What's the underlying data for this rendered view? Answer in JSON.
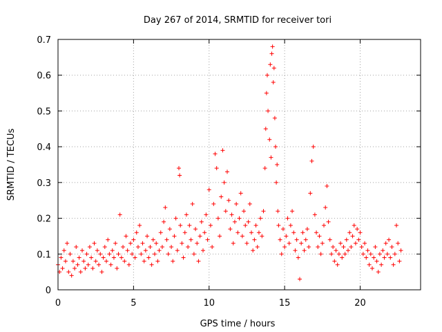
{
  "chart_data": {
    "type": "scatter",
    "title": "Day 267 of 2014, SRMTID for receiver tori",
    "xlabel": "GPS time / hours",
    "ylabel": "SRMTID / TECUs",
    "xlim": [
      0,
      24
    ],
    "ylim": [
      0,
      0.7
    ],
    "xticks": [
      0,
      5,
      10,
      15,
      20
    ],
    "yticks": [
      0,
      0.1,
      0.2,
      0.3,
      0.4,
      0.5,
      0.6,
      0.7
    ],
    "grid": true,
    "marker": "+",
    "color": "#ff0000",
    "x_range_observed": [
      0,
      22.7
    ],
    "series": [
      {
        "name": "SRMTID",
        "points": [
          [
            0.0,
            0.07
          ],
          [
            0.1,
            0.05
          ],
          [
            0.2,
            0.09
          ],
          [
            0.3,
            0.06
          ],
          [
            0.4,
            0.11
          ],
          [
            0.5,
            0.08
          ],
          [
            0.6,
            0.13
          ],
          [
            0.7,
            0.05
          ],
          [
            0.8,
            0.1
          ],
          [
            0.9,
            0.04
          ],
          [
            1.0,
            0.08
          ],
          [
            1.1,
            0.06
          ],
          [
            1.2,
            0.12
          ],
          [
            1.3,
            0.07
          ],
          [
            1.4,
            0.09
          ],
          [
            1.5,
            0.05
          ],
          [
            1.6,
            0.11
          ],
          [
            1.7,
            0.08
          ],
          [
            1.8,
            0.06
          ],
          [
            1.9,
            0.1
          ],
          [
            2.0,
            0.07
          ],
          [
            2.1,
            0.12
          ],
          [
            2.2,
            0.09
          ],
          [
            2.3,
            0.06
          ],
          [
            2.4,
            0.13
          ],
          [
            2.5,
            0.08
          ],
          [
            2.6,
            0.11
          ],
          [
            2.7,
            0.07
          ],
          [
            2.8,
            0.1
          ],
          [
            2.9,
            0.05
          ],
          [
            3.0,
            0.09
          ],
          [
            3.1,
            0.12
          ],
          [
            3.2,
            0.08
          ],
          [
            3.3,
            0.14
          ],
          [
            3.4,
            0.1
          ],
          [
            3.5,
            0.07
          ],
          [
            3.6,
            0.11
          ],
          [
            3.7,
            0.09
          ],
          [
            3.8,
            0.13
          ],
          [
            3.9,
            0.06
          ],
          [
            4.0,
            0.1
          ],
          [
            4.1,
            0.21
          ],
          [
            4.2,
            0.09
          ],
          [
            4.3,
            0.12
          ],
          [
            4.4,
            0.08
          ],
          [
            4.5,
            0.15
          ],
          [
            4.6,
            0.11
          ],
          [
            4.7,
            0.07
          ],
          [
            4.8,
            0.13
          ],
          [
            4.9,
            0.1
          ],
          [
            5.0,
            0.14
          ],
          [
            5.1,
            0.09
          ],
          [
            5.2,
            0.16
          ],
          [
            5.3,
            0.12
          ],
          [
            5.4,
            0.18
          ],
          [
            5.5,
            0.1
          ],
          [
            5.6,
            0.13
          ],
          [
            5.7,
            0.08
          ],
          [
            5.8,
            0.11
          ],
          [
            5.9,
            0.15
          ],
          [
            6.0,
            0.09
          ],
          [
            6.1,
            0.12
          ],
          [
            6.2,
            0.07
          ],
          [
            6.3,
            0.14
          ],
          [
            6.4,
            0.1
          ],
          [
            6.5,
            0.13
          ],
          [
            6.6,
            0.08
          ],
          [
            6.7,
            0.11
          ],
          [
            6.8,
            0.16
          ],
          [
            6.9,
            0.12
          ],
          [
            7.0,
            0.19
          ],
          [
            7.1,
            0.23
          ],
          [
            7.2,
            0.14
          ],
          [
            7.3,
            0.1
          ],
          [
            7.4,
            0.17
          ],
          [
            7.5,
            0.12
          ],
          [
            7.6,
            0.08
          ],
          [
            7.7,
            0.15
          ],
          [
            7.8,
            0.2
          ],
          [
            7.9,
            0.11
          ],
          [
            8.0,
            0.34
          ],
          [
            8.05,
            0.32
          ],
          [
            8.1,
            0.18
          ],
          [
            8.2,
            0.13
          ],
          [
            8.3,
            0.09
          ],
          [
            8.4,
            0.16
          ],
          [
            8.5,
            0.21
          ],
          [
            8.6,
            0.12
          ],
          [
            8.7,
            0.18
          ],
          [
            8.8,
            0.14
          ],
          [
            8.9,
            0.24
          ],
          [
            9.0,
            0.1
          ],
          [
            9.1,
            0.17
          ],
          [
            9.2,
            0.13
          ],
          [
            9.3,
            0.08
          ],
          [
            9.4,
            0.15
          ],
          [
            9.5,
            0.19
          ],
          [
            9.6,
            0.11
          ],
          [
            9.7,
            0.16
          ],
          [
            9.8,
            0.21
          ],
          [
            9.9,
            0.14
          ],
          [
            10.0,
            0.28
          ],
          [
            10.1,
            0.18
          ],
          [
            10.2,
            0.12
          ],
          [
            10.3,
            0.24
          ],
          [
            10.4,
            0.38
          ],
          [
            10.5,
            0.34
          ],
          [
            10.6,
            0.2
          ],
          [
            10.7,
            0.15
          ],
          [
            10.8,
            0.26
          ],
          [
            10.9,
            0.39
          ],
          [
            11.0,
            0.3
          ],
          [
            11.1,
            0.22
          ],
          [
            11.2,
            0.33
          ],
          [
            11.3,
            0.25
          ],
          [
            11.4,
            0.17
          ],
          [
            11.5,
            0.21
          ],
          [
            11.6,
            0.13
          ],
          [
            11.7,
            0.19
          ],
          [
            11.8,
            0.24
          ],
          [
            11.9,
            0.16
          ],
          [
            12.0,
            0.2
          ],
          [
            12.1,
            0.27
          ],
          [
            12.2,
            0.15
          ],
          [
            12.3,
            0.22
          ],
          [
            12.4,
            0.18
          ],
          [
            12.5,
            0.13
          ],
          [
            12.6,
            0.19
          ],
          [
            12.7,
            0.24
          ],
          [
            12.8,
            0.16
          ],
          [
            12.9,
            0.11
          ],
          [
            13.0,
            0.14
          ],
          [
            13.1,
            0.18
          ],
          [
            13.2,
            0.12
          ],
          [
            13.3,
            0.16
          ],
          [
            13.4,
            0.2
          ],
          [
            13.5,
            0.15
          ],
          [
            13.6,
            0.22
          ],
          [
            13.7,
            0.34
          ],
          [
            13.75,
            0.45
          ],
          [
            13.8,
            0.55
          ],
          [
            13.85,
            0.6
          ],
          [
            13.9,
            0.5
          ],
          [
            14.0,
            0.42
          ],
          [
            14.05,
            0.63
          ],
          [
            14.1,
            0.37
          ],
          [
            14.15,
            0.66
          ],
          [
            14.2,
            0.68
          ],
          [
            14.25,
            0.58
          ],
          [
            14.3,
            0.62
          ],
          [
            14.35,
            0.48
          ],
          [
            14.4,
            0.4
          ],
          [
            14.45,
            0.3
          ],
          [
            14.5,
            0.35
          ],
          [
            14.55,
            0.22
          ],
          [
            14.6,
            0.18
          ],
          [
            14.7,
            0.14
          ],
          [
            14.8,
            0.1
          ],
          [
            14.9,
            0.17
          ],
          [
            15.0,
            0.12
          ],
          [
            15.1,
            0.15
          ],
          [
            15.2,
            0.2
          ],
          [
            15.3,
            0.13
          ],
          [
            15.4,
            0.18
          ],
          [
            15.5,
            0.22
          ],
          [
            15.6,
            0.16
          ],
          [
            15.7,
            0.11
          ],
          [
            15.8,
            0.14
          ],
          [
            15.9,
            0.09
          ],
          [
            16.0,
            0.03
          ],
          [
            16.1,
            0.13
          ],
          [
            16.2,
            0.16
          ],
          [
            16.3,
            0.11
          ],
          [
            16.4,
            0.14
          ],
          [
            16.5,
            0.17
          ],
          [
            16.6,
            0.12
          ],
          [
            16.7,
            0.27
          ],
          [
            16.8,
            0.36
          ],
          [
            16.9,
            0.4
          ],
          [
            17.0,
            0.21
          ],
          [
            17.1,
            0.16
          ],
          [
            17.2,
            0.12
          ],
          [
            17.3,
            0.15
          ],
          [
            17.4,
            0.1
          ],
          [
            17.5,
            0.13
          ],
          [
            17.6,
            0.18
          ],
          [
            17.7,
            0.23
          ],
          [
            17.8,
            0.29
          ],
          [
            17.9,
            0.19
          ],
          [
            18.0,
            0.14
          ],
          [
            18.1,
            0.1
          ],
          [
            18.2,
            0.12
          ],
          [
            18.3,
            0.08
          ],
          [
            18.4,
            0.11
          ],
          [
            18.5,
            0.07
          ],
          [
            18.6,
            0.1
          ],
          [
            18.7,
            0.13
          ],
          [
            18.8,
            0.09
          ],
          [
            18.9,
            0.12
          ],
          [
            19.0,
            0.1
          ],
          [
            19.1,
            0.14
          ],
          [
            19.2,
            0.11
          ],
          [
            19.3,
            0.16
          ],
          [
            19.4,
            0.12
          ],
          [
            19.5,
            0.15
          ],
          [
            19.6,
            0.18
          ],
          [
            19.7,
            0.13
          ],
          [
            19.8,
            0.17
          ],
          [
            19.9,
            0.14
          ],
          [
            20.0,
            0.16
          ],
          [
            20.1,
            0.12
          ],
          [
            20.2,
            0.1
          ],
          [
            20.3,
            0.13
          ],
          [
            20.4,
            0.09
          ],
          [
            20.5,
            0.11
          ],
          [
            20.6,
            0.07
          ],
          [
            20.7,
            0.1
          ],
          [
            20.8,
            0.06
          ],
          [
            20.9,
            0.09
          ],
          [
            21.0,
            0.12
          ],
          [
            21.1,
            0.08
          ],
          [
            21.2,
            0.05
          ],
          [
            21.3,
            0.1
          ],
          [
            21.4,
            0.07
          ],
          [
            21.5,
            0.11
          ],
          [
            21.6,
            0.09
          ],
          [
            21.7,
            0.13
          ],
          [
            21.8,
            0.1
          ],
          [
            21.9,
            0.14
          ],
          [
            22.0,
            0.09
          ],
          [
            22.1,
            0.12
          ],
          [
            22.2,
            0.07
          ],
          [
            22.3,
            0.1
          ],
          [
            22.4,
            0.18
          ],
          [
            22.5,
            0.13
          ],
          [
            22.6,
            0.08
          ],
          [
            22.7,
            0.11
          ]
        ]
      }
    ]
  }
}
